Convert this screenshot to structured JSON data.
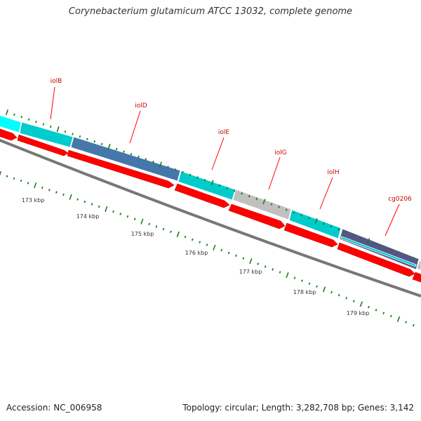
{
  "title": "Corynebacterium glutamicum ATCC 13032, complete genome",
  "footer": {
    "accession": "Accession: NC_006958",
    "summary": "Topology: circular; Length: 3,282,708 bp; Genes: 3,142"
  },
  "scale_labels": [
    "173 kbp",
    "174 kbp",
    "175 kbp",
    "176 kbp",
    "177 kbp",
    "178 kbp",
    "179 kbp"
  ],
  "gene_labels": [
    "iolB",
    "iolD",
    "iolE",
    "iolG",
    "iolH",
    "cg0206"
  ],
  "colors": {
    "cds_arrow": "#ff0000",
    "feature_cyan": "#00cccc",
    "feature_bright_cyan": "#00ffff",
    "feature_blue": "#4477aa",
    "feature_gray": "#c0c0c0",
    "feature_purple": "#555588",
    "backbone": "#777777",
    "tick": "#1a7f1a",
    "label_line": "#ff0000"
  }
}
